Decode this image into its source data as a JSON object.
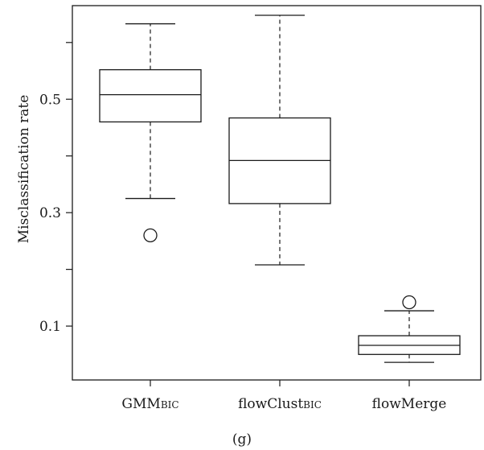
{
  "chart_data": {
    "type": "boxplot",
    "title": "",
    "caption": "(g)",
    "xlabel": "",
    "ylabel": "Misclassification rate",
    "ylim": [
      0.005,
      0.665
    ],
    "yticks": [
      0.1,
      0.3,
      0.5
    ],
    "ytick_labels": [
      "0.1",
      "0.3",
      "0.5"
    ],
    "grid": false,
    "groups": [
      {
        "label_main": "GMM",
        "label_sub": "BIC",
        "whisker_low": 0.325,
        "q1": 0.46,
        "median": 0.508,
        "q3": 0.552,
        "whisker_high": 0.633,
        "outliers": [
          0.26
        ]
      },
      {
        "label_main": "flowClust",
        "label_sub": "BIC",
        "whisker_low": 0.208,
        "q1": 0.316,
        "median": 0.392,
        "q3": 0.467,
        "whisker_high": 0.648,
        "outliers": []
      },
      {
        "label_main": "flowMerge",
        "label_sub": "",
        "whisker_low": 0.036,
        "q1": 0.05,
        "median": 0.066,
        "q3": 0.083,
        "whisker_high": 0.127,
        "outliers": [
          0.142
        ]
      }
    ]
  }
}
